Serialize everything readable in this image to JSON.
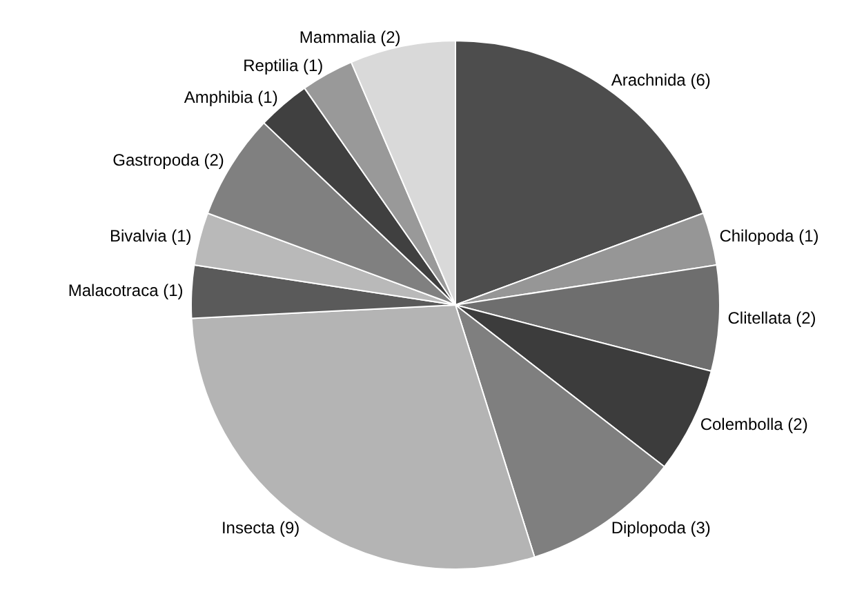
{
  "chart_data": {
    "type": "pie",
    "categories": [
      "Arachnida (6)",
      "Chilopoda (1)",
      "Clitellata (2)",
      "Colembolla (2)",
      "Diplopoda (3)",
      "Insecta (9)",
      "Malacotraca (1)",
      "Bivalvia (1)",
      "Gastropoda (2)",
      "Amphibia (1)",
      "Reptilia (1)",
      "Mammalia (2)"
    ],
    "values": [
      6,
      1,
      2,
      2,
      3,
      9,
      1,
      1,
      2,
      1,
      1,
      2
    ],
    "colors": [
      "#4d4d4d",
      "#969696",
      "#6e6e6e",
      "#3c3c3c",
      "#7f7f7f",
      "#b4b4b4",
      "#5a5a5a",
      "#b9b9b9",
      "#808080",
      "#404040",
      "#999999",
      "#d9d9d9"
    ],
    "legend": false
  }
}
